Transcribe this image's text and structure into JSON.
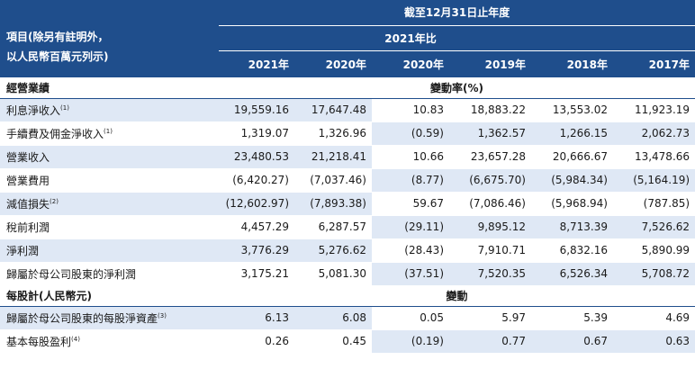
{
  "header": {
    "period_title": "截至12月31日止年度",
    "item_label_line1": "項目(除另有註明外，",
    "item_label_line2": "以人民幣百萬元列示)",
    "change_label_line1": "2021年比",
    "years": [
      "2021年",
      "2020年",
      "2020年",
      "2019年",
      "2018年",
      "2017年"
    ]
  },
  "sections": [
    {
      "title": "經營業績",
      "change_header": "變動率(%)",
      "rows": [
        {
          "label": "利息淨收入",
          "note": "(1)",
          "values": [
            "19,559.16",
            "17,647.48",
            "10.83",
            "18,883.22",
            "13,553.02",
            "11,923.19"
          ]
        },
        {
          "label": "手續費及佣金淨收入",
          "note": "(1)",
          "values": [
            "1,319.07",
            "1,326.96",
            "(0.59)",
            "1,362.57",
            "1,266.15",
            "2,062.73"
          ]
        },
        {
          "label": "營業收入",
          "note": "",
          "values": [
            "23,480.53",
            "21,218.41",
            "10.66",
            "23,657.28",
            "20,666.67",
            "13,478.66"
          ]
        },
        {
          "label": "營業費用",
          "note": "",
          "values": [
            "(6,420.27)",
            "(7,037.46)",
            "(8.77)",
            "(6,675.70)",
            "(5,984.34)",
            "(5,164.19)"
          ]
        },
        {
          "label": "減值損失",
          "note": "(2)",
          "values": [
            "(12,602.97)",
            "(7,893.38)",
            "59.67",
            "(7,086.46)",
            "(5,968.94)",
            "(787.85)"
          ]
        },
        {
          "label": "稅前利潤",
          "note": "",
          "values": [
            "4,457.29",
            "6,287.57",
            "(29.11)",
            "9,895.12",
            "8,713.39",
            "7,526.62"
          ]
        },
        {
          "label": "淨利潤",
          "note": "",
          "values": [
            "3,776.29",
            "5,276.62",
            "(28.43)",
            "7,910.71",
            "6,832.16",
            "5,890.99"
          ]
        },
        {
          "label": "歸屬於母公司股東的淨利潤",
          "note": "",
          "values": [
            "3,175.21",
            "5,081.30",
            "(37.51)",
            "7,520.35",
            "6,526.34",
            "5,708.72"
          ]
        }
      ]
    },
    {
      "title": "每股計(人民幣元)",
      "change_header": "變動",
      "rows": [
        {
          "label": "歸屬於母公司股東的每股淨資產",
          "note": "(3)",
          "values": [
            "6.13",
            "6.08",
            "0.05",
            "5.97",
            "5.39",
            "4.69"
          ]
        },
        {
          "label": "基本每股盈利",
          "note": "(4)",
          "values": [
            "0.26",
            "0.45",
            "(0.19)",
            "0.77",
            "0.67",
            "0.63"
          ]
        }
      ]
    }
  ],
  "colors": {
    "header_bg": "#1f4e8c",
    "shade_bg": "#dfe8f5"
  }
}
